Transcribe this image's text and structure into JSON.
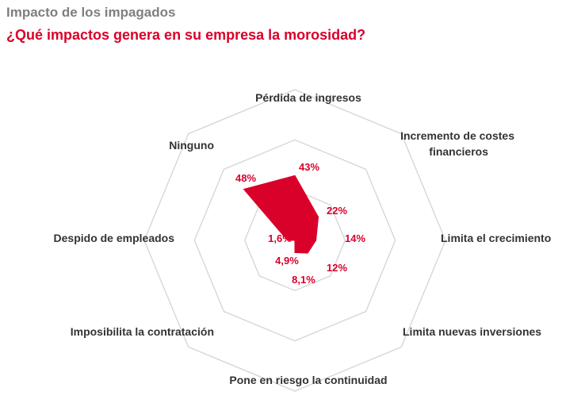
{
  "header": {
    "title": "Impacto de los impagados",
    "subtitle": "¿Qué impactos genera en su empresa la morosidad?"
  },
  "colors": {
    "series": "#d9002a",
    "grid": "#d4d4d4",
    "title": "#7f7f7f"
  },
  "chart_data": {
    "type": "radar",
    "categories": [
      "Pérdida de ingresos",
      "Incremento de costes financieros",
      "Limita el crecimiento",
      "Limita nuevas inversiones",
      "Pone en riesgo la continuidad",
      "Imposibilita la contratación",
      "Despido de empleados",
      "Ninguno"
    ],
    "values": [
      43,
      22,
      14,
      12,
      8.1,
      0,
      4.9,
      48
    ],
    "value_labels": [
      "43%",
      "22%",
      "14%",
      "12%",
      "8,1%",
      "",
      "4,9%",
      "48%"
    ],
    "extra_labels": [
      "1,6%"
    ],
    "range": [
      0,
      100
    ],
    "rings": 3,
    "grid": true,
    "legend": "none"
  }
}
